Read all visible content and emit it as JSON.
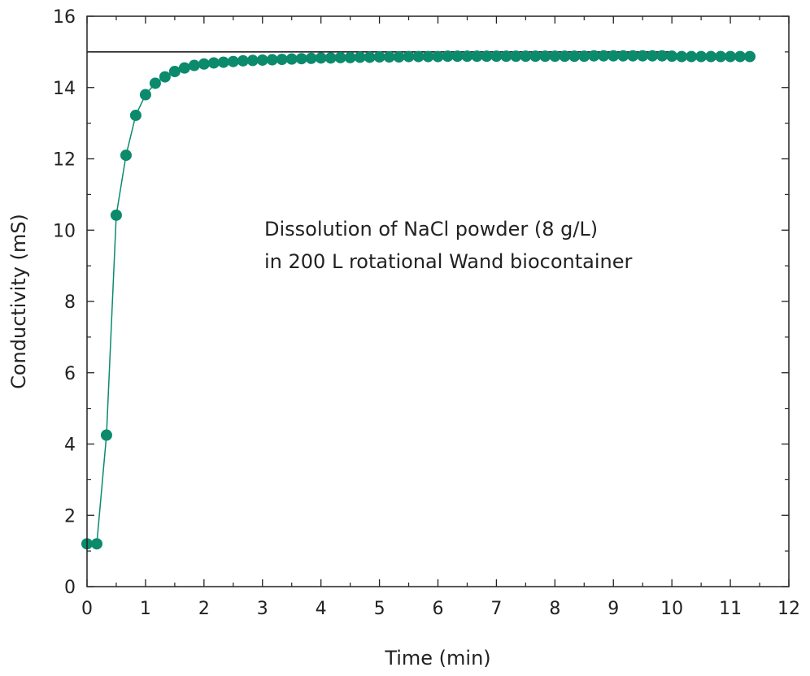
{
  "chart_data": {
    "type": "scatter",
    "title": "",
    "xlabel": "Time (min)",
    "ylabel": "Conductivity (mS)",
    "xlim": [
      0,
      12
    ],
    "ylim": [
      0,
      16
    ],
    "xticks": [
      "0",
      "1",
      "2",
      "3",
      "4",
      "5",
      "6",
      "7",
      "8",
      "9",
      "10",
      "11",
      "12"
    ],
    "yticks": [
      "0",
      "2",
      "4",
      "6",
      "8",
      "10",
      "12",
      "14",
      "16"
    ],
    "grid": false,
    "legend": "none",
    "annotation": [
      "Dissolution of NaCl powder (8 g/L)",
      "in 200 L rotational Wand biocontainer"
    ],
    "reference_line": {
      "y": 15.0,
      "x_start": 0,
      "x_end": 10
    },
    "series": [
      {
        "color": "#0b8a6c",
        "connected": true,
        "points": [
          [
            0.0,
            1.2
          ],
          [
            0.167,
            1.2
          ],
          [
            0.333,
            4.25
          ],
          [
            0.5,
            10.42
          ],
          [
            0.667,
            12.1
          ],
          [
            0.833,
            13.22
          ],
          [
            1.0,
            13.8
          ],
          [
            1.167,
            14.12
          ],
          [
            1.333,
            14.3
          ],
          [
            1.5,
            14.45
          ],
          [
            1.667,
            14.55
          ],
          [
            1.833,
            14.62
          ],
          [
            2.0,
            14.66
          ],
          [
            2.167,
            14.69
          ],
          [
            2.333,
            14.71
          ],
          [
            2.5,
            14.73
          ],
          [
            2.667,
            14.75
          ],
          [
            2.833,
            14.76
          ],
          [
            3.0,
            14.77
          ],
          [
            3.167,
            14.78
          ],
          [
            3.333,
            14.79
          ],
          [
            3.5,
            14.8
          ],
          [
            3.667,
            14.81
          ],
          [
            3.833,
            14.82
          ],
          [
            4.0,
            14.83
          ],
          [
            4.167,
            14.83
          ],
          [
            4.333,
            14.84
          ],
          [
            4.5,
            14.84
          ],
          [
            4.667,
            14.85
          ],
          [
            4.833,
            14.85
          ],
          [
            5.0,
            14.86
          ],
          [
            5.167,
            14.86
          ],
          [
            5.333,
            14.86
          ],
          [
            5.5,
            14.87
          ],
          [
            5.667,
            14.87
          ],
          [
            5.833,
            14.87
          ],
          [
            6.0,
            14.87
          ],
          [
            6.167,
            14.88
          ],
          [
            6.333,
            14.88
          ],
          [
            6.5,
            14.88
          ],
          [
            6.667,
            14.88
          ],
          [
            6.833,
            14.88
          ],
          [
            7.0,
            14.88
          ],
          [
            7.167,
            14.88
          ],
          [
            7.333,
            14.88
          ],
          [
            7.5,
            14.88
          ],
          [
            7.667,
            14.88
          ],
          [
            7.833,
            14.88
          ],
          [
            8.0,
            14.88
          ],
          [
            8.167,
            14.88
          ],
          [
            8.333,
            14.88
          ],
          [
            8.5,
            14.88
          ],
          [
            8.667,
            14.89
          ],
          [
            8.833,
            14.89
          ],
          [
            9.0,
            14.89
          ],
          [
            9.167,
            14.89
          ],
          [
            9.333,
            14.89
          ],
          [
            9.5,
            14.89
          ],
          [
            9.667,
            14.89
          ],
          [
            9.833,
            14.89
          ],
          [
            10.0,
            14.88
          ],
          [
            10.167,
            14.87
          ],
          [
            10.333,
            14.87
          ],
          [
            10.5,
            14.87
          ],
          [
            10.667,
            14.87
          ],
          [
            10.833,
            14.87
          ],
          [
            11.0,
            14.87
          ],
          [
            11.167,
            14.87
          ],
          [
            11.333,
            14.87
          ]
        ]
      }
    ]
  }
}
